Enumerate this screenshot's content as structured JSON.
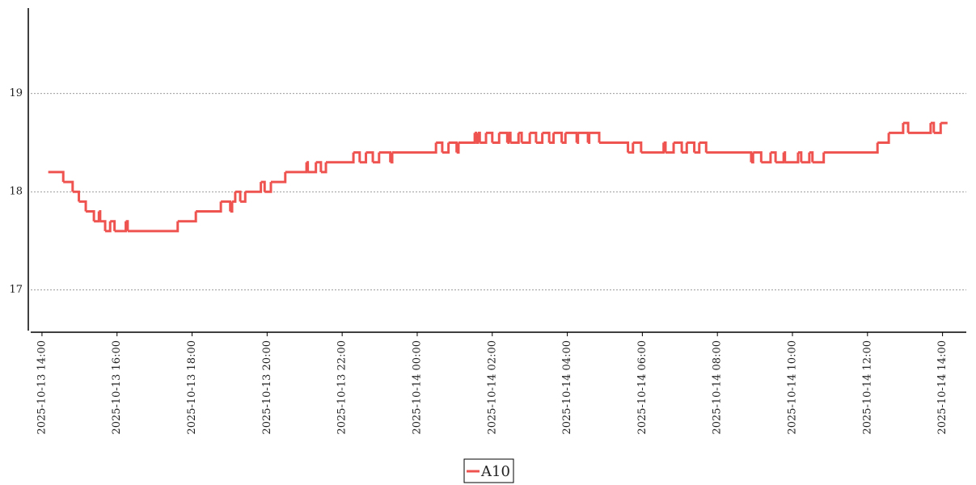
{
  "chart_data": {
    "type": "line",
    "drawstyle": "steps-post",
    "grid": true,
    "legend": "lower center",
    "xlim": [
      "2025-10-13 13:42",
      "2025-10-14 14:38"
    ],
    "xticks": [
      "2025-10-13 14:00",
      "2025-10-13 16:00",
      "2025-10-13 18:00",
      "2025-10-13 20:00",
      "2025-10-13 22:00",
      "2025-10-14 00:00",
      "2025-10-14 02:00",
      "2025-10-14 04:00",
      "2025-10-14 06:00",
      "2025-10-14 08:00",
      "2025-10-14 10:00",
      "2025-10-14 12:00",
      "2025-10-14 14:00"
    ],
    "ylim": [
      16.57,
      19.87
    ],
    "yticks": [
      17,
      18,
      19
    ],
    "x": [
      "2025-10-13 14:10",
      "2025-10-13 14:34",
      "2025-10-13 14:49",
      "2025-10-13 14:59",
      "2025-10-13 15:10",
      "2025-10-13 15:23",
      "2025-10-13 15:31",
      "2025-10-13 15:33",
      "2025-10-13 15:41",
      "2025-10-13 15:49",
      "2025-10-13 15:56",
      "2025-10-13 16:14",
      "2025-10-13 16:17",
      "2025-10-13 17:37",
      "2025-10-13 18:06",
      "2025-10-13 18:46",
      "2025-10-13 19:01",
      "2025-10-13 19:04",
      "2025-10-13 19:09",
      "2025-10-13 19:17",
      "2025-10-13 19:25",
      "2025-10-13 19:50",
      "2025-10-13 19:56",
      "2025-10-13 20:06",
      "2025-10-13 20:29",
      "2025-10-13 21:03",
      "2025-10-13 21:05",
      "2025-10-13 21:18",
      "2025-10-13 21:26",
      "2025-10-13 21:34",
      "2025-10-13 22:18",
      "2025-10-13 22:28",
      "2025-10-13 22:38",
      "2025-10-13 22:49",
      "2025-10-13 22:59",
      "2025-10-13 23:17",
      "2025-10-13 23:20",
      "2025-10-14 00:30",
      "2025-10-14 00:40",
      "2025-10-14 00:50",
      "2025-10-14 01:03",
      "2025-10-14 01:06",
      "2025-10-14 01:32",
      "2025-10-14 01:34",
      "2025-10-14 01:37",
      "2025-10-14 01:40",
      "2025-10-14 01:50",
      "2025-10-14 02:00",
      "2025-10-14 02:11",
      "2025-10-14 02:24",
      "2025-10-14 02:26",
      "2025-10-14 02:29",
      "2025-10-14 02:42",
      "2025-10-14 02:47",
      "2025-10-14 03:00",
      "2025-10-14 03:10",
      "2025-10-14 03:20",
      "2025-10-14 03:31",
      "2025-10-14 03:38",
      "2025-10-14 03:51",
      "2025-10-14 03:57",
      "2025-10-14 04:15",
      "2025-10-14 04:17",
      "2025-10-14 04:33",
      "2025-10-14 04:35",
      "2025-10-14 04:51",
      "2025-10-14 05:37",
      "2025-10-14 05:45",
      "2025-10-14 05:58",
      "2025-10-14 06:34",
      "2025-10-14 06:37",
      "2025-10-14 06:50",
      "2025-10-14 07:03",
      "2025-10-14 07:11",
      "2025-10-14 07:23",
      "2025-10-14 07:31",
      "2025-10-14 07:42",
      "2025-10-14 08:54",
      "2025-10-14 08:57",
      "2025-10-14 09:10",
      "2025-10-14 09:25",
      "2025-10-14 09:33",
      "2025-10-14 09:46",
      "2025-10-14 09:48",
      "2025-10-14 10:09",
      "2025-10-14 10:14",
      "2025-10-14 10:27",
      "2025-10-14 10:32",
      "2025-10-14 10:50",
      "2025-10-14 12:16",
      "2025-10-14 12:34",
      "2025-10-14 12:57",
      "2025-10-14 13:05",
      "2025-10-14 13:41",
      "2025-10-14 13:46",
      "2025-10-14 13:57",
      "2025-10-14 14:08"
    ],
    "series": [
      {
        "name": "A10",
        "color": "#ef5350",
        "values": [
          18.2,
          18.1,
          18.0,
          17.9,
          17.8,
          17.7,
          17.8,
          17.7,
          17.6,
          17.7,
          17.6,
          17.7,
          17.6,
          17.7,
          17.8,
          17.9,
          17.8,
          17.9,
          18.0,
          17.9,
          18.0,
          18.1,
          18.0,
          18.1,
          18.2,
          18.3,
          18.2,
          18.3,
          18.2,
          18.3,
          18.4,
          18.3,
          18.4,
          18.3,
          18.4,
          18.3,
          18.4,
          18.5,
          18.4,
          18.5,
          18.4,
          18.5,
          18.6,
          18.5,
          18.6,
          18.5,
          18.6,
          18.5,
          18.6,
          18.5,
          18.6,
          18.5,
          18.6,
          18.5,
          18.6,
          18.5,
          18.6,
          18.5,
          18.6,
          18.5,
          18.6,
          18.5,
          18.6,
          18.5,
          18.6,
          18.5,
          18.4,
          18.5,
          18.4,
          18.5,
          18.4,
          18.5,
          18.4,
          18.5,
          18.4,
          18.5,
          18.4,
          18.3,
          18.4,
          18.3,
          18.4,
          18.3,
          18.4,
          18.3,
          18.4,
          18.3,
          18.4,
          18.3,
          18.4,
          18.5,
          18.6,
          18.7,
          18.6,
          18.7,
          18.6,
          18.7,
          18.7
        ]
      }
    ]
  }
}
